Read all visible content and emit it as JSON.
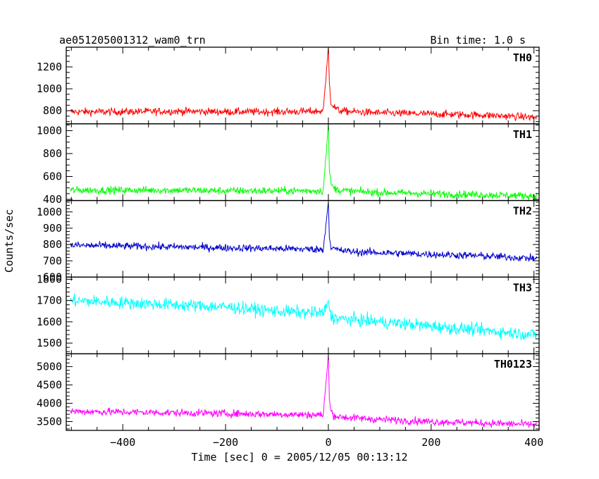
{
  "header": {
    "title": "ae051205001312_wam0_trn",
    "bin_time": "Bin time: 1.0 s"
  },
  "chart_data": {
    "type": "line",
    "xlabel": "Time [sec] 0 = 2005/12/05 00:13:12",
    "ylabel": "Counts/sec",
    "xlim": [
      -510,
      410
    ],
    "xticks": [
      -400,
      -200,
      0,
      200,
      400
    ],
    "x": [
      -500,
      -400,
      -300,
      -200,
      -100,
      -10,
      0,
      2,
      5,
      10,
      20,
      50,
      100,
      200,
      300,
      400
    ],
    "panels": [
      {
        "name": "TH0",
        "color": "#ff0000",
        "ylim": [
          680,
          1380
        ],
        "yticks": [
          800,
          1000,
          1200
        ],
        "values": [
          790,
          790,
          795,
          790,
          790,
          795,
          1380,
          1050,
          880,
          840,
          800,
          790,
          780,
          770,
          760,
          740
        ]
      },
      {
        "name": "TH1",
        "color": "#00ff00",
        "ylim": [
          390,
          1060
        ],
        "yticks": [
          400,
          600,
          800,
          1000
        ],
        "values": [
          480,
          480,
          480,
          475,
          475,
          475,
          1050,
          650,
          540,
          500,
          480,
          470,
          460,
          450,
          440,
          430
        ]
      },
      {
        "name": "TH2",
        "color": "#0000cc",
        "ylim": [
          600,
          1070
        ],
        "yticks": [
          600,
          700,
          800,
          900,
          1000
        ],
        "values": [
          795,
          790,
          785,
          780,
          775,
          770,
          1060,
          840,
          790,
          775,
          765,
          755,
          750,
          740,
          730,
          715
        ]
      },
      {
        "name": "TH3",
        "color": "#00ffff",
        "ylim": [
          1450,
          1810
        ],
        "yticks": [
          1500,
          1600,
          1700,
          1800
        ],
        "values": [
          1700,
          1690,
          1680,
          1670,
          1650,
          1640,
          1700,
          1660,
          1630,
          1620,
          1615,
          1610,
          1600,
          1580,
          1560,
          1540
        ]
      },
      {
        "name": "TH0123",
        "color": "#ff00ff",
        "ylim": [
          3260,
          5350
        ],
        "yticks": [
          3500,
          4000,
          4500,
          5000
        ],
        "values": [
          3780,
          3760,
          3740,
          3720,
          3700,
          3680,
          5300,
          4100,
          3780,
          3680,
          3630,
          3600,
          3560,
          3500,
          3460,
          3420
        ]
      }
    ]
  }
}
